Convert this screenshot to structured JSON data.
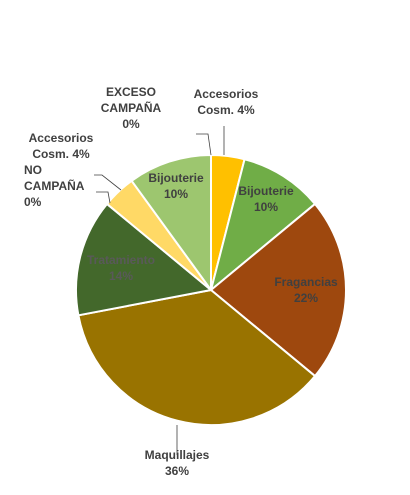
{
  "chart_data": {
    "type": "pie",
    "slices": [
      {
        "label": "Accesorios Cosm.",
        "value": 4,
        "display": "4%",
        "color": "#ffc000"
      },
      {
        "label": "Bijouterie",
        "value": 10,
        "display": "10%",
        "color": "#70ad47"
      },
      {
        "label": "Fragancias",
        "value": 22,
        "display": "22%",
        "color": "#9e480e"
      },
      {
        "label": "Maquillajes",
        "value": 36,
        "display": "36%",
        "color": "#997300"
      },
      {
        "label": "Tratamiento",
        "value": 14,
        "display": "14%",
        "color": "#43682b"
      },
      {
        "label": "NO CAMPAÑA",
        "value": 0,
        "display": "0%",
        "color": "#ffffff"
      },
      {
        "label": "Accesorios Cosm.",
        "value": 4,
        "display": "4%",
        "color": "#ffd966"
      },
      {
        "label": "Bijouterie",
        "value": 10,
        "display": "10%",
        "color": "#9dc66f"
      },
      {
        "label": "EXCESO CAMPAÑA",
        "value": 0,
        "display": "0%",
        "color": "#ffffff"
      }
    ],
    "labels": [
      {
        "lines": [
          "Accesorios",
          "Cosm. 4%"
        ],
        "color": "#404040"
      },
      {
        "lines": [
          "Bijouterie",
          "10%"
        ],
        "color": "#404040"
      },
      {
        "lines": [
          "Fragancias",
          "22%"
        ],
        "color": "#404040"
      },
      {
        "lines": [
          "Maquillajes",
          "36%"
        ],
        "color": "#404040"
      },
      {
        "lines": [
          "Tratamiento",
          "14%"
        ],
        "color": "#595959"
      },
      {
        "lines": [
          "NO",
          "CAMPAÑA",
          "0%"
        ],
        "color": "#404040"
      },
      {
        "lines": [
          "Accesorios",
          "Cosm. 4%"
        ],
        "color": "#404040"
      },
      {
        "lines": [
          "Bijouterie",
          "10%"
        ],
        "color": "#404040"
      },
      {
        "lines": [
          "EXCESO",
          "CAMPAÑA",
          "0%"
        ],
        "color": "#404040"
      }
    ],
    "legend": "none"
  }
}
